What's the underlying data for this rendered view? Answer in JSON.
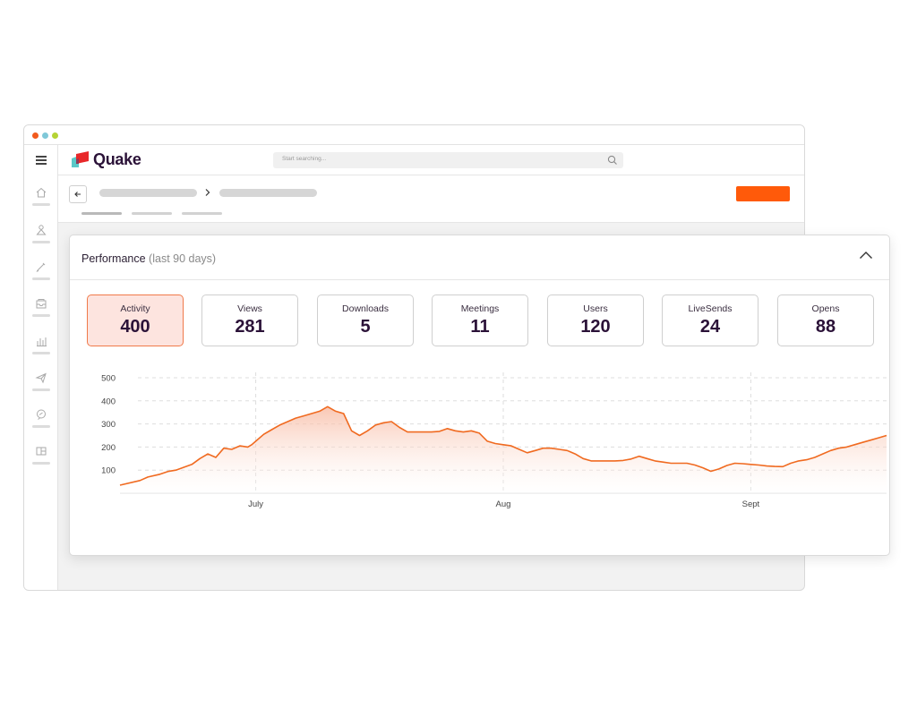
{
  "window": {
    "dot_colors": [
      "#f25a1d",
      "#7fc8d8",
      "#b5d334"
    ]
  },
  "sidebar": {
    "items": [
      {
        "icon": "home-icon"
      },
      {
        "icon": "person-icon"
      },
      {
        "icon": "pen-icon"
      },
      {
        "icon": "inbox-icon"
      },
      {
        "icon": "bar-chart-icon"
      },
      {
        "icon": "send-icon"
      },
      {
        "icon": "chat-icon"
      },
      {
        "icon": "layout-icon"
      }
    ]
  },
  "brand": {
    "name": "Quake",
    "colors": {
      "accent": "#ff5a0a",
      "brand_red": "#e8282a",
      "brand_teal": "#5bc8c8",
      "text": "#2b1238"
    }
  },
  "search": {
    "placeholder": "Start searching..."
  },
  "performance": {
    "title": "Performance",
    "subtitle": "(last 90 days)",
    "stats": [
      {
        "label": "Activity",
        "value": "400",
        "active": true
      },
      {
        "label": "Views",
        "value": "281",
        "active": false
      },
      {
        "label": "Downloads",
        "value": "5",
        "active": false
      },
      {
        "label": "Meetings",
        "value": "11",
        "active": false
      },
      {
        "label": "Users",
        "value": "120",
        "active": false
      },
      {
        "label": "LiveSends",
        "value": "24",
        "active": false
      },
      {
        "label": "Opens",
        "value": "88",
        "active": false
      }
    ]
  },
  "chart_data": {
    "type": "area",
    "title": "",
    "xlabel": "",
    "ylabel": "",
    "ylim": [
      0,
      500
    ],
    "yticks": [
      100,
      200,
      300,
      400,
      500
    ],
    "xticks": [
      {
        "label": "July",
        "day": 21
      },
      {
        "label": "Aug",
        "day": 52
      },
      {
        "label": "Sept",
        "day": 83
      }
    ],
    "grid": true,
    "line_color": "#f06a20",
    "series": [
      {
        "days": [
          4,
          6.5,
          7.5,
          9,
          10,
          11,
          13,
          14,
          15,
          16,
          17,
          18,
          19,
          20,
          20.5,
          21,
          22,
          23,
          24,
          25,
          26,
          27,
          28,
          29,
          30,
          31,
          32,
          33,
          34,
          35,
          36,
          37,
          38,
          39,
          40,
          41,
          42,
          43,
          44,
          45,
          46,
          47,
          48,
          49,
          50,
          51,
          52,
          53,
          54,
          55,
          56,
          57,
          58,
          59,
          60,
          61,
          62,
          63,
          64,
          65,
          66,
          67,
          68,
          69,
          70,
          71,
          72,
          73,
          74,
          75,
          76,
          77,
          78,
          79,
          80,
          81,
          82,
          83,
          84,
          85,
          86,
          87,
          88,
          89,
          90,
          91,
          92,
          93,
          94,
          95,
          96,
          97,
          98,
          99,
          100
        ],
        "values": [
          35,
          55,
          70,
          82,
          94,
          100,
          125,
          150,
          170,
          155,
          195,
          190,
          205,
          200,
          210,
          225,
          255,
          275,
          295,
          310,
          325,
          335,
          345,
          355,
          375,
          355,
          345,
          270,
          250,
          270,
          295,
          305,
          310,
          285,
          265,
          265,
          265,
          265,
          268,
          280,
          270,
          265,
          270,
          260,
          225,
          215,
          210,
          205,
          190,
          175,
          185,
          195,
          195,
          190,
          185,
          170,
          150,
          140,
          140,
          140,
          140,
          142,
          148,
          160,
          150,
          140,
          135,
          130,
          130,
          130,
          122,
          110,
          95,
          105,
          120,
          130,
          128,
          125,
          122,
          118,
          116,
          115,
          130,
          140,
          145,
          155,
          170,
          185,
          195,
          200,
          210,
          220,
          230,
          240,
          250
        ]
      }
    ]
  }
}
